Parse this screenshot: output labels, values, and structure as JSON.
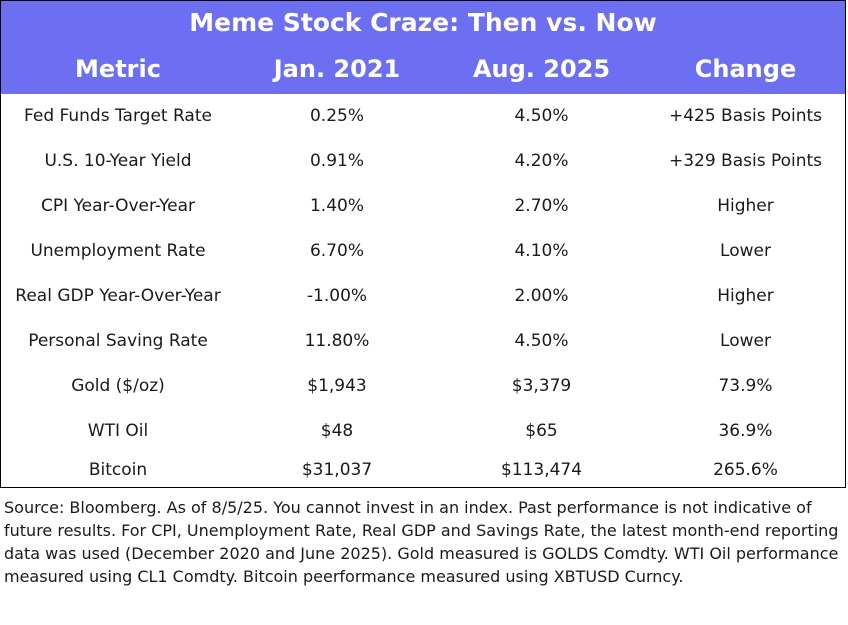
{
  "title": "Meme Stock Craze: Then vs. Now",
  "headers": [
    "Metric",
    "Jan. 2021",
    "Aug. 2025",
    "Change"
  ],
  "rows": [
    [
      "Fed Funds Target Rate",
      "0.25%",
      "4.50%",
      "+425 Basis Points"
    ],
    [
      "U.S. 10-Year Yield",
      "0.91%",
      "4.20%",
      "+329 Basis Points"
    ],
    [
      "CPI Year-Over-Year",
      "1.40%",
      "2.70%",
      "Higher"
    ],
    [
      "Unemployment Rate",
      "6.70%",
      "4.10%",
      "Lower"
    ],
    [
      "Real GDP Year-Over-Year",
      "-1.00%",
      "2.00%",
      "Higher"
    ],
    [
      "Personal Saving Rate",
      "11.80%",
      "4.50%",
      "Lower"
    ],
    [
      "Gold ($/oz)",
      "$1,943",
      "$3,379",
      "73.9%"
    ],
    [
      "WTI Oil",
      "$48",
      "$65",
      "36.9%"
    ],
    [
      "Bitcoin",
      "$31,037",
      "$113,474",
      "265.6%"
    ]
  ],
  "source": "Source: Bloomberg. As of 8/5/25. You cannot invest in an index. Past performance is not indicative of future results. For CPI, Unemployment Rate, Real GDP and Savings Rate, the latest month-end reporting data was used (December 2020 and June 2025). Gold measured is GOLDS Comdty. WTI Oil performance measured using CL1 Comdty. Bitcoin peerformance measured using XBTUSD Curncy.",
  "colors": {
    "header_bg": "#6d6ff2",
    "header_text": "#ffffff",
    "body_text": "#1a1a1a",
    "border": "#000000"
  }
}
